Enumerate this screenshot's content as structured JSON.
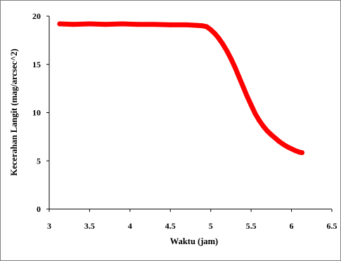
{
  "chart_data": {
    "type": "line",
    "title": "",
    "xlabel": "Waktu (jam)",
    "ylabel": "Kecerahan Langit (mag/arcsec^2)",
    "xlim": [
      3,
      6.5
    ],
    "ylim": [
      0,
      20
    ],
    "xticks": [
      "3",
      "3.5",
      "4",
      "4.5",
      "5",
      "5.5",
      "6",
      "6.5"
    ],
    "yticks": [
      "0",
      "5",
      "10",
      "15",
      "20"
    ],
    "grid": false,
    "legend": "none",
    "series": [
      {
        "color": "#ff0000",
        "x": [
          3.13,
          3.3,
          3.5,
          3.7,
          3.9,
          4.1,
          4.3,
          4.5,
          4.7,
          4.82,
          4.9,
          4.95,
          5.0,
          5.05,
          5.1,
          5.15,
          5.2,
          5.25,
          5.3,
          5.35,
          5.4,
          5.45,
          5.5,
          5.55,
          5.6,
          5.65,
          5.7,
          5.75,
          5.8,
          5.85,
          5.9,
          5.95,
          6.0,
          6.05,
          6.1,
          6.13
        ],
        "y": [
          19.2,
          19.15,
          19.2,
          19.15,
          19.2,
          19.15,
          19.15,
          19.1,
          19.1,
          19.05,
          19.0,
          18.9,
          18.6,
          18.2,
          17.7,
          17.1,
          16.4,
          15.6,
          14.7,
          13.7,
          12.7,
          11.7,
          10.8,
          9.9,
          9.2,
          8.6,
          8.1,
          7.7,
          7.35,
          7.0,
          6.7,
          6.45,
          6.25,
          6.05,
          5.9,
          5.85
        ]
      }
    ]
  }
}
